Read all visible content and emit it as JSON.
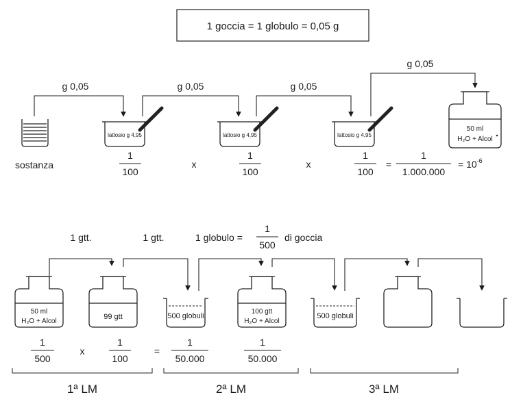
{
  "title": "1 goccia = 1 globulo = 0,05 g",
  "top_row": {
    "transfer_labels": [
      "g 0,05",
      "g 0,05",
      "g 0,05",
      "g 0,05"
    ],
    "substance_label": "sostanza",
    "mortar_label": "lattosio g 4,95",
    "bottle_volume": "50 ml",
    "bottle_solvent": "H₂O + Alcol",
    "fraction_num": "1",
    "fraction_den": "100",
    "times_symbol": "x",
    "equals_symbol": "=",
    "result_num": "1",
    "result_den": "1.000.000",
    "result_power_base": "= 10",
    "result_power_exp": "-6"
  },
  "bottom_row": {
    "drop_label_1": "1 gtt.",
    "drop_label_2": "1 gtt.",
    "globule_text": "1 globulo =",
    "globule_frac_num": "1",
    "globule_frac_den": "500",
    "globule_suffix": "di goccia",
    "bottle1_volume": "50 ml",
    "bottle1_solvent": "H₂O + Alcol",
    "bottle2_label": "99 gtt",
    "dish_label": "500 globuli",
    "bottle3_volume": "100 gtt",
    "bottle3_solvent": "H₂O + Alcol",
    "frac_a_num": "1",
    "frac_a_den": "500",
    "frac_b_num": "1",
    "frac_b_den": "100",
    "frac_c_num": "1",
    "frac_c_den": "50.000",
    "frac_d_num": "1",
    "frac_d_den": "50.000",
    "times_symbol": "x",
    "equals_symbol": "=",
    "lm_labels": [
      "1ª LM",
      "2ª LM",
      "3ª LM"
    ]
  }
}
